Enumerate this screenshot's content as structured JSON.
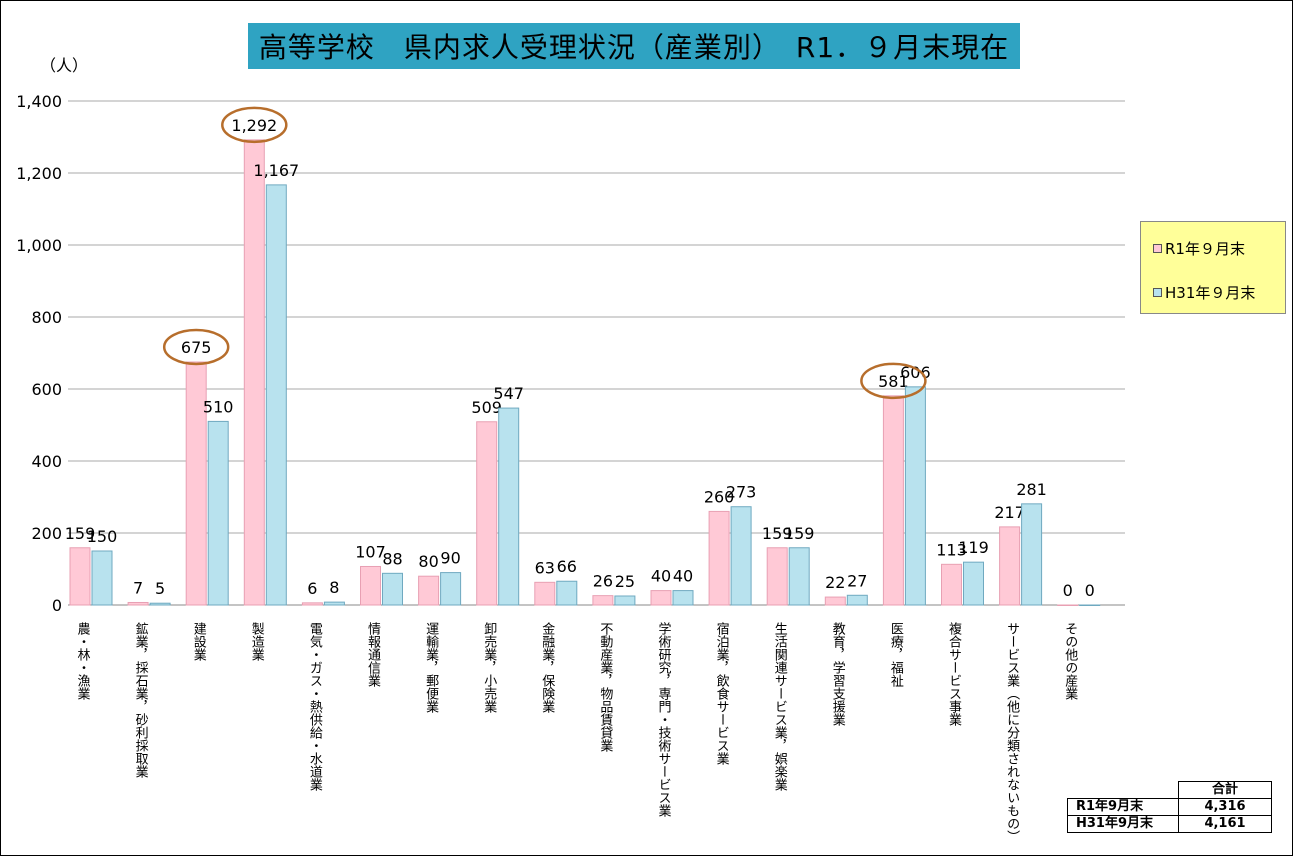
{
  "chart_data": {
    "type": "bar",
    "title": "高等学校　県内求人受理状況（産業別）　R1．９月末現在",
    "unit_label": "（人）",
    "ylim": [
      0,
      1400
    ],
    "y_ticks": [
      "0",
      "200",
      "400",
      "600",
      "800",
      "1,000",
      "1,200",
      "1,400"
    ],
    "categories": [
      "農・林・漁業",
      "鉱業，採石業，砂利採取業",
      "建設業",
      "製造業",
      "電気・ガス・熱供給・水道業",
      "情報通信業",
      "運輸業，郵便業",
      "卸売業，小売業",
      "金融業，保険業",
      "不動産業，物品賃貸業",
      "学術研究，専門・技術サービス業",
      "宿泊業，飲食サービス業",
      "生活関連サービス業，娯楽業",
      "教育，学習支援業",
      "医療，福祉",
      "複合サービス事業",
      "サービス業（他に分類されないもの）",
      "その他の産業"
    ],
    "series": [
      {
        "name": "R1年９月末",
        "color": "#ffc9d6",
        "values": [
          159,
          7,
          675,
          1292,
          6,
          107,
          80,
          509,
          63,
          26,
          40,
          260,
          159,
          22,
          581,
          113,
          217,
          0
        ],
        "labels": [
          "159",
          "7",
          "675",
          "1,292",
          "6",
          "107",
          "80",
          "509",
          "63",
          "26",
          "40",
          "260",
          "159",
          "22",
          "581",
          "113",
          "217",
          "0"
        ]
      },
      {
        "name": "H31年９月末",
        "color": "#b8e2ee",
        "values": [
          150,
          5,
          510,
          1167,
          8,
          88,
          90,
          547,
          66,
          25,
          40,
          273,
          159,
          27,
          606,
          119,
          281,
          0
        ],
        "labels": [
          "150",
          "5",
          "510",
          "1,167",
          "8",
          "88",
          "90",
          "547",
          "66",
          "25",
          "40",
          "273",
          "159",
          "27",
          "606",
          "119",
          "281",
          "0"
        ]
      }
    ],
    "circled_categories": [
      2,
      3,
      14
    ],
    "legend_position": "right",
    "grid": true
  },
  "totals": {
    "header": "合計",
    "rows": [
      {
        "label": "R1年9月末",
        "value": "4,316"
      },
      {
        "label": "H31年9月末",
        "value": "4,161"
      }
    ]
  }
}
